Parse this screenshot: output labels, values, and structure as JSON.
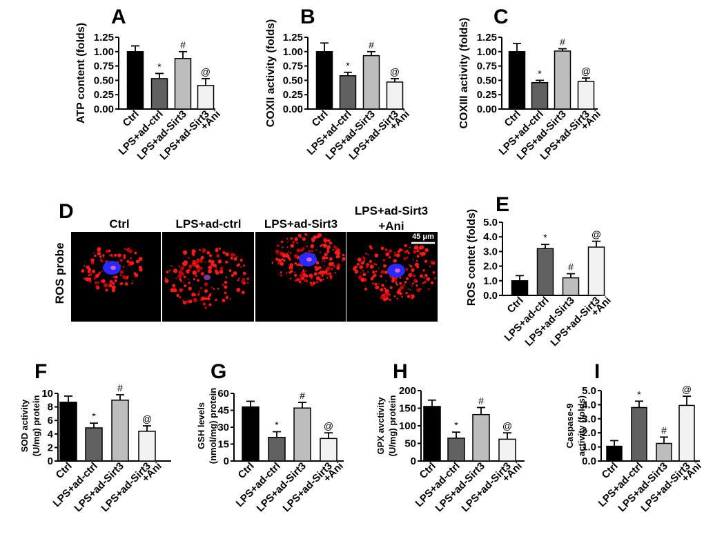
{
  "figure_letters": {
    "A": "A",
    "B": "B",
    "C": "C",
    "D": "D",
    "E": "E",
    "F": "F",
    "G": "G",
    "H": "H",
    "I": "I"
  },
  "groups": [
    "Ctrl",
    "LPS+ad-ctrl",
    "LPS+ad-Sirt3",
    "LPS+ad-Sirt3\n+Ani"
  ],
  "colors": {
    "Ctrl": "#000000",
    "LPS+ad-ctrl": "#616161",
    "LPS+ad-Sirt3": "#bdbdbd",
    "LPS+ad-Sirt3+Ani": "#f2f2f2"
  },
  "microscopy": {
    "row_label": "ROS probe",
    "column_labels": [
      "Ctrl",
      "LPS+ad-ctrl",
      "LPS+ad-Sirt3",
      "LPS+ad-Sirt3\n+Ani"
    ],
    "scale_bar": "45 μm"
  },
  "chart_data": [
    {
      "id": "A",
      "type": "bar",
      "ylabel": "ATP content (folds)",
      "categories": [
        "Ctrl",
        "LPS+ad-ctrl",
        "LPS+ad-Sirt3",
        "LPS+ad-Sirt3\n+Ani"
      ],
      "values": [
        1.0,
        0.53,
        0.88,
        0.41
      ],
      "errors": [
        0.1,
        0.09,
        0.12,
        0.12
      ],
      "significance": [
        "",
        "*",
        "#",
        "@"
      ],
      "ylim": [
        0,
        1.25
      ],
      "yticks": [
        "0.00",
        "0.25",
        "0.50",
        "0.75",
        "1.00",
        "1.25"
      ]
    },
    {
      "id": "B",
      "type": "bar",
      "ylabel": "COXII activity (folds)",
      "categories": [
        "Ctrl",
        "LPS+ad-ctrl",
        "LPS+ad-Sirt3",
        "LPS+ad-Sirt3\n+Ani"
      ],
      "values": [
        1.0,
        0.58,
        0.93,
        0.47
      ],
      "errors": [
        0.15,
        0.06,
        0.07,
        0.06
      ],
      "significance": [
        "",
        "*",
        "#",
        "@"
      ],
      "ylim": [
        0,
        1.25
      ],
      "yticks": [
        "0.00",
        "0.25",
        "0.50",
        "0.75",
        "1.00",
        "1.25"
      ]
    },
    {
      "id": "C",
      "type": "bar",
      "ylabel": "COXIII activity (folds)",
      "categories": [
        "Ctrl",
        "LPS+ad-ctrl",
        "LPS+ad-Sirt3",
        "LPS+ad-Sirt3\n+Ani"
      ],
      "values": [
        1.0,
        0.46,
        1.01,
        0.48
      ],
      "errors": [
        0.14,
        0.04,
        0.04,
        0.06
      ],
      "significance": [
        "",
        "*",
        "#",
        "@"
      ],
      "ylim": [
        0,
        1.25
      ],
      "yticks": [
        "0.00",
        "0.25",
        "0.50",
        "0.75",
        "1.00",
        "1.25"
      ]
    },
    {
      "id": "E",
      "type": "bar",
      "ylabel": "ROS contet (folds)",
      "categories": [
        "Ctrl",
        "LPS+ad-ctrl",
        "LPS+ad-Sirt3",
        "LPS+ad-Sirt3\n+Ani"
      ],
      "values": [
        1.0,
        3.2,
        1.2,
        3.3
      ],
      "errors": [
        0.35,
        0.28,
        0.28,
        0.4
      ],
      "significance": [
        "",
        "*",
        "#",
        "@"
      ],
      "ylim": [
        0,
        5.0
      ],
      "yticks": [
        "0.0",
        "1.0",
        "2.0",
        "3.0",
        "4.0",
        "5.0"
      ]
    },
    {
      "id": "F",
      "type": "bar",
      "ylabel": "SOD activity\n(U/mg) protein",
      "categories": [
        "Ctrl",
        "LPS+ad-ctrl",
        "LPS+ad-Sirt3",
        "LPS+ad-Sirt3\n+Ani"
      ],
      "values": [
        8.7,
        4.9,
        9.0,
        4.4
      ],
      "errors": [
        0.9,
        0.7,
        0.8,
        0.8
      ],
      "significance": [
        "",
        "*",
        "#",
        "@"
      ],
      "ylim": [
        0,
        10
      ],
      "yticks": [
        "0",
        "2",
        "4",
        "6",
        "8",
        "10"
      ]
    },
    {
      "id": "G",
      "type": "bar",
      "ylabel": "GSH levels\n(nmol/mg) protein",
      "categories": [
        "Ctrl",
        "LPS+ad-ctrl",
        "LPS+ad-Sirt3",
        "LPS+ad-Sirt3\n+Ani"
      ],
      "values": [
        48,
        21,
        47,
        20
      ],
      "errors": [
        5,
        5,
        5,
        5
      ],
      "significance": [
        "",
        "*",
        "#",
        "@"
      ],
      "ylim": [
        0,
        60
      ],
      "yticks": [
        "0",
        "15",
        "30",
        "45",
        "60"
      ]
    },
    {
      "id": "H",
      "type": "bar",
      "ylabel": "GPX avctivity\n(U/mg) protein",
      "categories": [
        "Ctrl",
        "LPS+ad-ctrl",
        "LPS+ad-Sirt3",
        "LPS+ad-Sirt3\n+Ani"
      ],
      "values": [
        155,
        65,
        132,
        62
      ],
      "errors": [
        18,
        17,
        20,
        18
      ],
      "significance": [
        "",
        "*",
        "#",
        "@"
      ],
      "ylim": [
        0,
        200
      ],
      "yticks": [
        "0",
        "50",
        "100",
        "150",
        "200"
      ]
    },
    {
      "id": "I",
      "type": "bar",
      "ylabel": "Caspase-9\nactivity (folds)",
      "categories": [
        "Ctrl",
        "LPS+ad-ctrl",
        "LPS+ad-Sirt3",
        "LPS+ad-Sirt3\n+Ani"
      ],
      "values": [
        1.05,
        3.8,
        1.25,
        3.95
      ],
      "errors": [
        0.4,
        0.45,
        0.45,
        0.65
      ],
      "significance": [
        "",
        "*",
        "#",
        "@"
      ],
      "ylim": [
        0,
        5.0
      ],
      "yticks": [
        "0.0",
        "1.0",
        "2.0",
        "3.0",
        "4.0",
        "5.0"
      ]
    }
  ]
}
